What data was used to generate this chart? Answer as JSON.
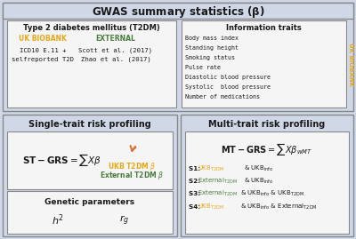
{
  "title": "GWAS summary statistics (β)",
  "bg_outer": "#d0d8e8",
  "bg_white": "#f5f5f5",
  "bg_section": "#e8ecf4",
  "color_ukb": "#e6a817",
  "color_external": "#4a7c3f",
  "color_arrow": "#e07030",
  "color_black": "#1a1a1a",
  "color_border": "#888888",
  "info_traits": [
    "Body mass index",
    "Standing height",
    "Smoking status",
    "Pulse rate",
    "Diastolic blood pressure",
    "Systolic  blood pressure",
    "Number of medications"
  ]
}
